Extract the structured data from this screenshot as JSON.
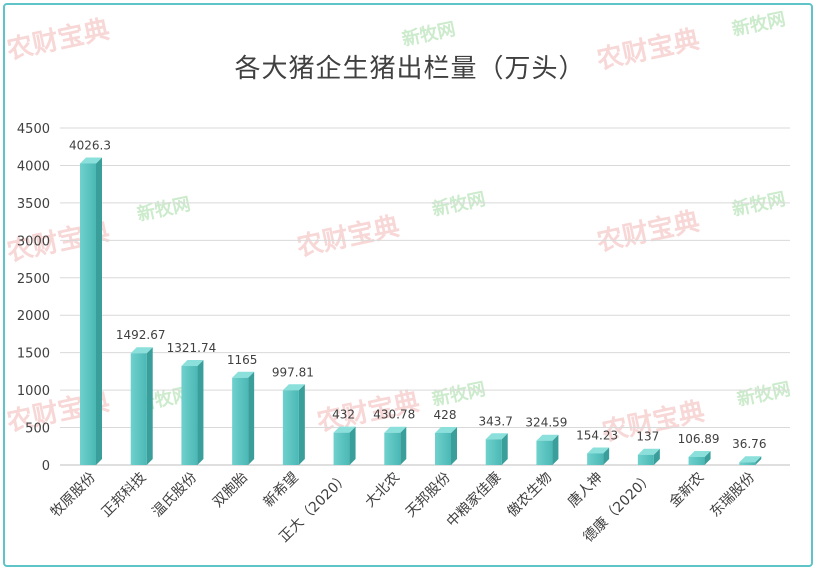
{
  "chart_data": {
    "type": "bar",
    "title": "各大猪企生猪出栏量（万头）",
    "categories": [
      "牧原股份",
      "正邦科技",
      "温氏股份",
      "双胞胎",
      "新希望",
      "正大（2020）",
      "大北农",
      "天邦股份",
      "中粮家佳康",
      "傲农生物",
      "唐人神",
      "德康（2020）",
      "金新农",
      "东瑞股份"
    ],
    "values": [
      4026.3,
      1492.67,
      1321.74,
      1165,
      997.81,
      432,
      430.78,
      428,
      343.7,
      324.59,
      154.23,
      137,
      106.89,
      36.76
    ],
    "value_labels": [
      "4026.3",
      "1492.67",
      "1321.74",
      "1165",
      "997.81",
      "432",
      "430.78",
      "428",
      "343.7",
      "324.59",
      "154.23",
      "137",
      "106.89",
      "36.76"
    ],
    "ylim": [
      0,
      4500
    ],
    "yticks": [
      0,
      500,
      1000,
      1500,
      2000,
      2500,
      3000,
      3500,
      4000,
      4500
    ],
    "xlabel": "",
    "ylabel": "",
    "grid": true,
    "bar_color": "#5ec5c2"
  },
  "watermarks": [
    "农财宝典",
    "新牧网"
  ]
}
